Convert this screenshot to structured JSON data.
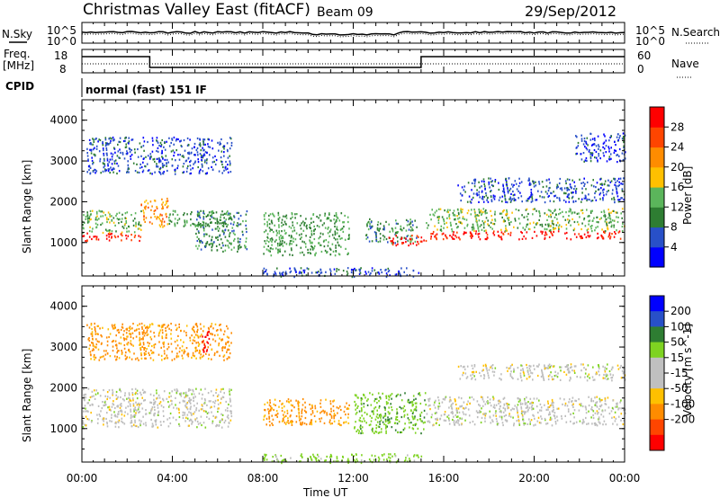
{
  "header": {
    "station": "Christmas Valley East (fitACF)",
    "beam": "Beam 09",
    "date": "29/Sep/2012"
  },
  "nsky_panel": {
    "left_label": "N.Sky",
    "left_ticks": [
      "10^5",
      "10^0"
    ],
    "right_ticks": [
      "10^5",
      "10^0"
    ],
    "right_label": "N.Search"
  },
  "freq_panel": {
    "left_label_line1": "Freq.",
    "left_label_line2": "[MHz]",
    "left_ticks": [
      "18",
      "8"
    ],
    "right_ticks": [
      "60",
      "0"
    ],
    "right_label": "Nave"
  },
  "cpid": {
    "label": "CPID",
    "value": "normal (fast) 151 IF"
  },
  "colors": {
    "power_scale": [
      "#0000ff",
      "#2850c8",
      "#2e7d32",
      "#5bb55b",
      "#ffc000",
      "#ff8c00",
      "#ff4500",
      "#ff0000"
    ],
    "velocity_scale": [
      "#ff0000",
      "#ff4500",
      "#ff8c00",
      "#ffc000",
      "#c0c0c0",
      "#c0c0c0",
      "#7ed321",
      "#2e7d32",
      "#2850c8",
      "#0000ff"
    ],
    "ground_scatter": "#bdbdbd"
  },
  "chart_data": [
    {
      "type": "heatmap",
      "name": "power",
      "title": "",
      "xlabel": "",
      "ylabel": "Slant Range [km]",
      "colorbar_label": "Power [dB]",
      "x_range_hours": [
        0,
        24
      ],
      "y_range_km": [
        180,
        4500
      ],
      "y_ticks": [
        1000,
        2000,
        3000,
        4000
      ],
      "colorbar_ticks": [
        4,
        8,
        12,
        16,
        20,
        24,
        28
      ],
      "bands": [
        {
          "start_h": 0.0,
          "end_h": 2.6,
          "range_km": [
            1050,
            1250
          ],
          "value": 30
        },
        {
          "start_h": 0.0,
          "end_h": 2.6,
          "range_km": [
            1250,
            1800
          ],
          "value": 14
        },
        {
          "start_h": 2.6,
          "end_h": 3.8,
          "range_km": [
            1400,
            2100
          ],
          "value": 22
        },
        {
          "start_h": 3.8,
          "end_h": 6.6,
          "range_km": [
            1400,
            1800
          ],
          "value": 12
        },
        {
          "start_h": 0.2,
          "end_h": 6.6,
          "range_km": [
            2700,
            3600
          ],
          "value": 6
        },
        {
          "start_h": 5.0,
          "end_h": 7.3,
          "range_km": [
            800,
            1800
          ],
          "value": 10
        },
        {
          "start_h": 8.0,
          "end_h": 11.8,
          "range_km": [
            700,
            1750
          ],
          "value": 12
        },
        {
          "start_h": 8.0,
          "end_h": 15.0,
          "range_km": [
            180,
            400
          ],
          "value": 6
        },
        {
          "start_h": 12.5,
          "end_h": 14.8,
          "range_km": [
            1000,
            1600
          ],
          "value": 10
        },
        {
          "start_h": 13.5,
          "end_h": 15.2,
          "range_km": [
            950,
            1200
          ],
          "value": 30
        },
        {
          "start_h": 15.2,
          "end_h": 24.0,
          "range_km": [
            1100,
            1300
          ],
          "value": 30
        },
        {
          "start_h": 15.2,
          "end_h": 24.0,
          "range_km": [
            1300,
            1850
          ],
          "value": 14
        },
        {
          "start_h": 16.6,
          "end_h": 24.0,
          "range_km": [
            2000,
            2600
          ],
          "value": 6
        },
        {
          "start_h": 21.8,
          "end_h": 24.0,
          "range_km": [
            3000,
            3700
          ],
          "value": 5
        }
      ]
    },
    {
      "type": "heatmap",
      "name": "velocity",
      "title": "",
      "xlabel": "Time UT",
      "ylabel": "Slant Range [km]",
      "colorbar_label": "Velocity [m s^-1]",
      "x_range_hours": [
        0,
        24
      ],
      "y_range_km": [
        180,
        4500
      ],
      "y_ticks": [
        1000,
        2000,
        3000,
        4000
      ],
      "x_ticks": [
        "00:00",
        "04:00",
        "08:00",
        "12:00",
        "16:00",
        "20:00",
        "00:00"
      ],
      "colorbar_ticks": [
        200,
        100,
        50,
        15,
        -15,
        -50,
        -100,
        -200
      ],
      "bands": [
        {
          "start_h": 0.0,
          "end_h": 6.6,
          "range_km": [
            1050,
            2000
          ],
          "value": 0
        },
        {
          "start_h": 0.2,
          "end_h": 6.6,
          "range_km": [
            2700,
            3600
          ],
          "value": -60
        },
        {
          "start_h": 5.2,
          "end_h": 5.6,
          "range_km": [
            2900,
            3400
          ],
          "value": -250
        },
        {
          "start_h": 8.0,
          "end_h": 11.8,
          "range_km": [
            1100,
            1750
          ],
          "value": -60
        },
        {
          "start_h": 8.0,
          "end_h": 15.0,
          "range_km": [
            180,
            400
          ],
          "value": 30
        },
        {
          "start_h": 12.0,
          "end_h": 15.2,
          "range_km": [
            900,
            1900
          ],
          "value": 40
        },
        {
          "start_h": 15.2,
          "end_h": 24.0,
          "range_km": [
            1100,
            1800
          ],
          "value": 0
        },
        {
          "start_h": 16.6,
          "end_h": 24.0,
          "range_km": [
            2200,
            2600
          ],
          "value": 0
        }
      ]
    }
  ]
}
